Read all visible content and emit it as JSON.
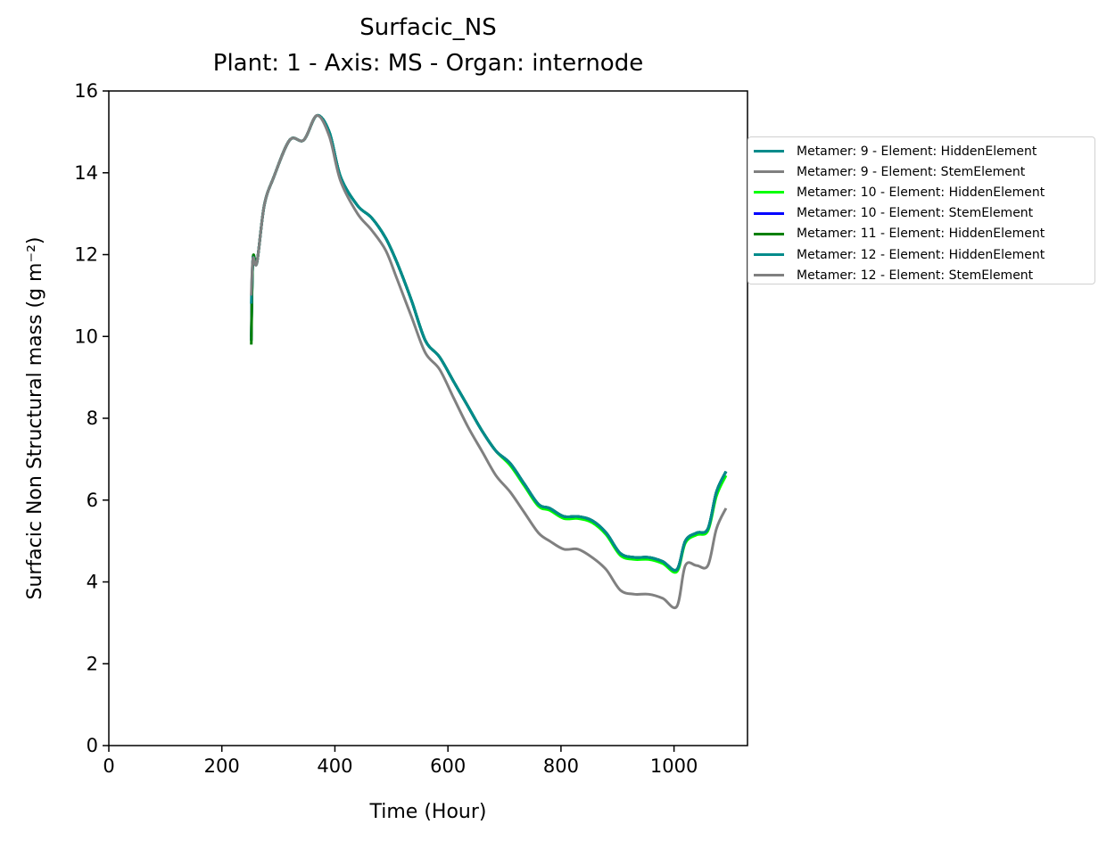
{
  "chart_data": {
    "type": "line",
    "title": "Surfacic_NS",
    "subtitle": "Plant: 1 - Axis: MS - Organ: internode",
    "xlabel": "Time (Hour)",
    "ylabel": "Surfacic Non Structural mass (g m⁻²)",
    "xlim": [
      0,
      1130
    ],
    "ylim": [
      0,
      16
    ],
    "xticks": [
      "0",
      "200",
      "400",
      "600",
      "800",
      "1000"
    ],
    "yticks": [
      "0",
      "2",
      "4",
      "6",
      "8",
      "10",
      "12",
      "14",
      "16"
    ],
    "grid": false,
    "legend_position": "outside-right",
    "series": [
      {
        "name": "Metamer: 9 - Element: HiddenElement",
        "color": "#008b8b",
        "x": [
          252,
          255,
          262,
          275,
          292,
          320,
          345,
          368,
          390,
          410,
          440,
          465,
          490,
          510,
          535,
          560,
          585,
          610,
          635,
          660,
          685,
          710,
          735,
          760,
          780,
          805,
          830,
          855,
          880,
          905,
          930,
          955,
          980,
          1005,
          1020,
          1040,
          1060,
          1075,
          1092
        ],
        "y": [
          10.0,
          11.9,
          11.8,
          13.2,
          13.9,
          14.8,
          14.8,
          15.4,
          15.0,
          13.9,
          13.2,
          12.9,
          12.4,
          11.8,
          10.9,
          9.9,
          9.5,
          8.9,
          8.3,
          7.7,
          7.2,
          6.9,
          6.4,
          5.9,
          5.8,
          5.6,
          5.6,
          5.5,
          5.2,
          4.7,
          4.6,
          4.6,
          4.5,
          4.3,
          5.0,
          5.2,
          5.3,
          6.2,
          6.7
        ]
      },
      {
        "name": "Metamer: 9 - Element: StemElement",
        "color": "#808080",
        "x": [
          252,
          255,
          262,
          275,
          292,
          320,
          345,
          368,
          390,
          410,
          440,
          465,
          490,
          510,
          535,
          560,
          585,
          610,
          635,
          660,
          685,
          710,
          735,
          760,
          780,
          805,
          830,
          855,
          880,
          905,
          930,
          955,
          980,
          1005,
          1020,
          1040,
          1060,
          1075,
          1092
        ],
        "y": [
          10.0,
          11.9,
          11.8,
          13.2,
          13.9,
          14.8,
          14.8,
          15.4,
          15.0,
          13.9,
          13.2,
          12.9,
          12.4,
          11.8,
          10.9,
          9.9,
          9.5,
          8.9,
          8.3,
          7.7,
          7.2,
          6.9,
          6.4,
          5.9,
          5.8,
          5.6,
          5.6,
          5.5,
          5.2,
          4.7,
          4.6,
          4.6,
          4.5,
          4.3,
          5.0,
          5.2,
          5.3,
          6.2,
          6.7
        ]
      },
      {
        "name": "Metamer: 10 - Element: HiddenElement",
        "color": "#00ff00",
        "x": [
          252,
          255,
          262,
          275,
          292,
          320,
          345,
          368,
          390,
          410,
          440,
          465,
          490,
          510,
          535,
          560,
          585,
          610,
          635,
          660,
          685,
          710,
          735,
          760,
          780,
          805,
          830,
          855,
          880,
          905,
          930,
          955,
          980,
          1005,
          1020,
          1040,
          1060,
          1075,
          1092
        ],
        "y": [
          9.9,
          11.9,
          11.8,
          13.2,
          13.9,
          14.8,
          14.8,
          15.4,
          15.0,
          13.9,
          13.2,
          12.9,
          12.4,
          11.8,
          10.9,
          9.9,
          9.5,
          8.9,
          8.3,
          7.7,
          7.2,
          6.85,
          6.35,
          5.85,
          5.75,
          5.55,
          5.55,
          5.45,
          5.15,
          4.65,
          4.55,
          4.55,
          4.45,
          4.25,
          4.95,
          5.15,
          5.25,
          6.1,
          6.6
        ]
      },
      {
        "name": "Metamer: 10 - Element: StemElement",
        "color": "#0000ff",
        "x": [
          252,
          255,
          262,
          275,
          292,
          320,
          345,
          368,
          390,
          410,
          440,
          465,
          490,
          510,
          535,
          560,
          585,
          610,
          635,
          660,
          685,
          710,
          735,
          760,
          780,
          805,
          830,
          855,
          880,
          905,
          930,
          955,
          980,
          1005,
          1020,
          1040,
          1060,
          1075,
          1092
        ],
        "y": [
          9.9,
          11.9,
          11.8,
          13.2,
          13.9,
          14.8,
          14.8,
          15.4,
          15.0,
          13.9,
          13.2,
          12.9,
          12.4,
          11.8,
          10.9,
          9.9,
          9.5,
          8.9,
          8.3,
          7.7,
          7.2,
          6.9,
          6.4,
          5.9,
          5.8,
          5.6,
          5.6,
          5.5,
          5.2,
          4.7,
          4.6,
          4.6,
          4.5,
          4.3,
          5.0,
          5.2,
          5.3,
          6.2,
          6.7
        ]
      },
      {
        "name": "Metamer: 11 - Element: HiddenElement",
        "color": "#008000",
        "x": [
          252,
          255,
          262,
          275,
          292,
          320,
          345,
          368,
          390,
          410,
          440,
          465,
          490,
          510,
          535,
          560,
          585,
          610,
          635,
          660,
          685,
          710,
          735,
          760,
          780,
          805,
          830,
          855,
          880,
          905,
          930,
          955,
          980,
          1005,
          1020,
          1040,
          1060,
          1075,
          1092
        ],
        "y": [
          9.8,
          11.9,
          11.8,
          13.2,
          13.9,
          14.8,
          14.8,
          15.4,
          15.0,
          13.9,
          13.2,
          12.9,
          12.4,
          11.8,
          10.9,
          9.9,
          9.5,
          8.9,
          8.3,
          7.7,
          7.2,
          6.9,
          6.4,
          5.9,
          5.8,
          5.6,
          5.6,
          5.5,
          5.2,
          4.7,
          4.6,
          4.6,
          4.5,
          4.3,
          5.0,
          5.2,
          5.3,
          6.2,
          6.7
        ]
      },
      {
        "name": "Metamer: 12 - Element: HiddenElement",
        "color": "#008b8b",
        "x": [
          252,
          255,
          262,
          275,
          292,
          320,
          345,
          368,
          390,
          410,
          440,
          465,
          490,
          510,
          535,
          560,
          585,
          610,
          635,
          660,
          685,
          710,
          735,
          760,
          780,
          805,
          830,
          855,
          880,
          905,
          930,
          955,
          980,
          1005,
          1020,
          1040,
          1060,
          1075,
          1092
        ],
        "y": [
          10.8,
          11.9,
          11.8,
          13.2,
          13.9,
          14.8,
          14.8,
          15.4,
          15.0,
          13.9,
          13.2,
          12.9,
          12.4,
          11.8,
          10.9,
          9.9,
          9.5,
          8.9,
          8.3,
          7.7,
          7.2,
          6.9,
          6.4,
          5.9,
          5.8,
          5.6,
          5.6,
          5.5,
          5.2,
          4.7,
          4.6,
          4.6,
          4.5,
          4.3,
          5.0,
          5.2,
          5.3,
          6.2,
          6.7
        ]
      },
      {
        "name": "Metamer: 12 - Element: StemElement",
        "color": "#808080",
        "x": [
          252,
          255,
          262,
          275,
          292,
          320,
          345,
          368,
          390,
          410,
          440,
          465,
          490,
          510,
          535,
          560,
          585,
          610,
          635,
          660,
          685,
          710,
          735,
          760,
          780,
          805,
          830,
          855,
          880,
          905,
          930,
          955,
          980,
          1005,
          1020,
          1040,
          1060,
          1075,
          1092
        ],
        "y": [
          11.0,
          11.9,
          11.8,
          13.2,
          13.9,
          14.8,
          14.8,
          15.4,
          14.9,
          13.8,
          13.0,
          12.6,
          12.1,
          11.4,
          10.5,
          9.6,
          9.2,
          8.5,
          7.8,
          7.2,
          6.6,
          6.2,
          5.7,
          5.2,
          5.0,
          4.8,
          4.8,
          4.6,
          4.3,
          3.8,
          3.7,
          3.7,
          3.6,
          3.4,
          4.4,
          4.4,
          4.4,
          5.3,
          5.8
        ]
      }
    ]
  }
}
